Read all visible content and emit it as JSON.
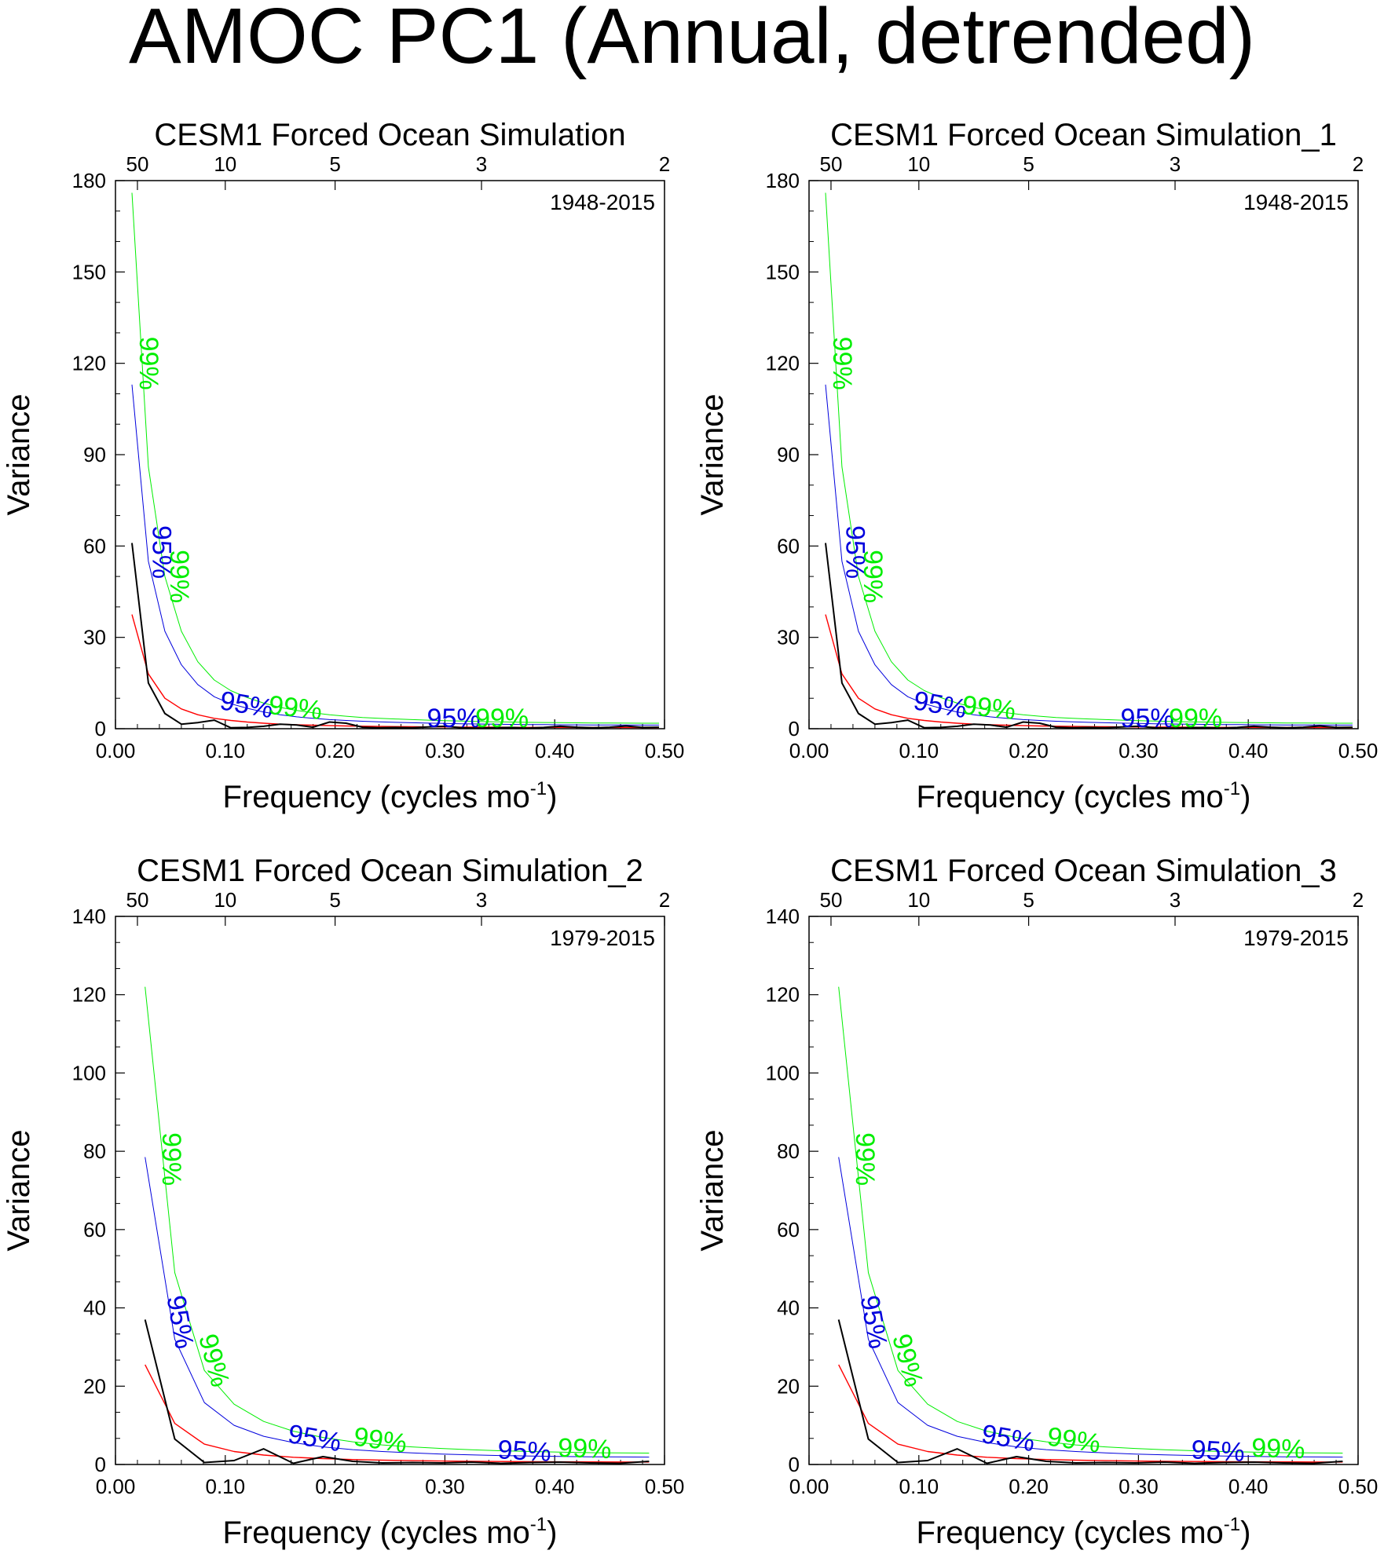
{
  "page_title": "AMOC PC1 (Annual, detrended)",
  "colors": {
    "spectrum": "#000000",
    "red_noise": "#ff0000",
    "ci95": "#0000dd",
    "ci99": "#00ee00",
    "axis": "#000000"
  },
  "chart_data": [
    {
      "type": "line",
      "title": "CESM1 Forced Ocean Simulation",
      "xlabel": "Frequency (cycles mo",
      "xlabel_superscript": "-1",
      "xlabel_close": ")",
      "ylabel": "Variance",
      "period_label": "1948-2015",
      "xlim": [
        0,
        0.5
      ],
      "ylim": [
        0,
        180
      ],
      "x_ticks": [
        "0.00",
        "0.10",
        "0.20",
        "0.30",
        "0.40",
        "0.50"
      ],
      "y_ticks": [
        "0",
        "30",
        "60",
        "90",
        "120",
        "150",
        "180"
      ],
      "top_ticks": [
        {
          "value": 50,
          "label": "50"
        },
        {
          "value": 10,
          "label": "10"
        },
        {
          "value": 5,
          "label": "5"
        },
        {
          "value": 3,
          "label": "3"
        },
        {
          "value": 2,
          "label": "2"
        }
      ],
      "x": [
        0.015,
        0.03,
        0.045,
        0.06,
        0.075,
        0.09,
        0.105,
        0.12,
        0.135,
        0.15,
        0.165,
        0.18,
        0.195,
        0.21,
        0.225,
        0.24,
        0.255,
        0.27,
        0.285,
        0.3,
        0.315,
        0.33,
        0.345,
        0.36,
        0.375,
        0.39,
        0.405,
        0.42,
        0.435,
        0.45,
        0.465,
        0.48,
        0.495
      ],
      "series": [
        {
          "name": "spectrum",
          "values": [
            61,
            15,
            5,
            1.5,
            2,
            2.8,
            0.3,
            0.4,
            0.8,
            1.5,
            1.2,
            0.5,
            2.2,
            1.8,
            0.5,
            0.3,
            0.4,
            0.3,
            0.6,
            0.8,
            0.3,
            0.2,
            0.3,
            0.4,
            0.2,
            0.4,
            0.8,
            0.5,
            0.3,
            0.5,
            0.9,
            0.4,
            0.5
          ]
        },
        {
          "name": "red_noise",
          "values": [
            37.5,
            18,
            10,
            6.5,
            4.6,
            3.4,
            2.7,
            2.2,
            1.8,
            1.5,
            1.3,
            1.15,
            1.0,
            0.9,
            0.82,
            0.75,
            0.7,
            0.65,
            0.6,
            0.57,
            0.54,
            0.51,
            0.49,
            0.47,
            0.45,
            0.44,
            0.43,
            0.42,
            0.41,
            0.4,
            0.4,
            0.39,
            0.39
          ]
        },
        {
          "name": "ci95",
          "values": [
            113,
            55,
            32,
            21,
            14.5,
            10.5,
            8.2,
            6.7,
            5.5,
            4.6,
            3.9,
            3.4,
            3.0,
            2.7,
            2.45,
            2.25,
            2.1,
            1.95,
            1.82,
            1.72,
            1.63,
            1.55,
            1.48,
            1.42,
            1.37,
            1.33,
            1.3,
            1.27,
            1.24,
            1.22,
            1.2,
            1.19,
            1.18
          ]
        },
        {
          "name": "ci99",
          "values": [
            176,
            86,
            50,
            32,
            22,
            16,
            12.5,
            10.2,
            8.4,
            7.0,
            6.0,
            5.2,
            4.6,
            4.1,
            3.7,
            3.4,
            3.2,
            3.0,
            2.8,
            2.64,
            2.5,
            2.38,
            2.27,
            2.18,
            2.1,
            2.04,
            1.98,
            1.93,
            1.89,
            1.86,
            1.83,
            1.81,
            1.8
          ]
        }
      ],
      "sig_labels": [
        {
          "text": "99%",
          "series": "ci99",
          "x": 0.022,
          "y": 120,
          "rot": 90
        },
        {
          "text": "95%",
          "series": "ci95",
          "x": 0.034,
          "y": 58,
          "rot": 90
        },
        {
          "text": "99%",
          "series": "ci99",
          "x": 0.05,
          "y": 50,
          "rot": 90
        },
        {
          "text": "95%",
          "series": "ci95",
          "x": 0.118,
          "y": 5,
          "rot": 10
        },
        {
          "text": "99%",
          "series": "ci99",
          "x": 0.163,
          "y": 4,
          "rot": 6
        },
        {
          "text": "95%",
          "series": "ci95",
          "x": 0.308,
          "y": 0.5,
          "rot": 0
        },
        {
          "text": "99%",
          "series": "ci99",
          "x": 0.352,
          "y": 0.5,
          "rot": 0
        }
      ]
    },
    {
      "type": "line",
      "title": "CESM1 Forced Ocean Simulation_1",
      "xlabel": "Frequency (cycles mo",
      "xlabel_superscript": "-1",
      "xlabel_close": ")",
      "ylabel": "Variance",
      "period_label": "1948-2015",
      "xlim": [
        0,
        0.5
      ],
      "ylim": [
        0,
        180
      ],
      "x_ticks": [
        "0.00",
        "0.10",
        "0.20",
        "0.30",
        "0.40",
        "0.50"
      ],
      "y_ticks": [
        "0",
        "30",
        "60",
        "90",
        "120",
        "150",
        "180"
      ],
      "top_ticks": [
        {
          "value": 50,
          "label": "50"
        },
        {
          "value": 10,
          "label": "10"
        },
        {
          "value": 5,
          "label": "5"
        },
        {
          "value": 3,
          "label": "3"
        },
        {
          "value": 2,
          "label": "2"
        }
      ],
      "x": [
        0.015,
        0.03,
        0.045,
        0.06,
        0.075,
        0.09,
        0.105,
        0.12,
        0.135,
        0.15,
        0.165,
        0.18,
        0.195,
        0.21,
        0.225,
        0.24,
        0.255,
        0.27,
        0.285,
        0.3,
        0.315,
        0.33,
        0.345,
        0.36,
        0.375,
        0.39,
        0.405,
        0.42,
        0.435,
        0.45,
        0.465,
        0.48,
        0.495
      ],
      "series": [
        {
          "name": "spectrum",
          "values": [
            61,
            15,
            5,
            1.5,
            2,
            2.8,
            0.3,
            0.4,
            0.8,
            1.5,
            1.2,
            0.5,
            2.2,
            1.8,
            0.5,
            0.3,
            0.4,
            0.3,
            0.6,
            0.8,
            0.3,
            0.2,
            0.3,
            0.4,
            0.2,
            0.4,
            0.8,
            0.5,
            0.3,
            0.5,
            0.9,
            0.4,
            0.5
          ]
        },
        {
          "name": "red_noise",
          "values": [
            37.5,
            18,
            10,
            6.5,
            4.6,
            3.4,
            2.7,
            2.2,
            1.8,
            1.5,
            1.3,
            1.15,
            1.0,
            0.9,
            0.82,
            0.75,
            0.7,
            0.65,
            0.6,
            0.57,
            0.54,
            0.51,
            0.49,
            0.47,
            0.45,
            0.44,
            0.43,
            0.42,
            0.41,
            0.4,
            0.4,
            0.39,
            0.39
          ]
        },
        {
          "name": "ci95",
          "values": [
            113,
            55,
            32,
            21,
            14.5,
            10.5,
            8.2,
            6.7,
            5.5,
            4.6,
            3.9,
            3.4,
            3.0,
            2.7,
            2.45,
            2.25,
            2.1,
            1.95,
            1.82,
            1.72,
            1.63,
            1.55,
            1.48,
            1.42,
            1.37,
            1.33,
            1.3,
            1.27,
            1.24,
            1.22,
            1.2,
            1.19,
            1.18
          ]
        },
        {
          "name": "ci99",
          "values": [
            176,
            86,
            50,
            32,
            22,
            16,
            12.5,
            10.2,
            8.4,
            7.0,
            6.0,
            5.2,
            4.6,
            4.1,
            3.7,
            3.4,
            3.2,
            3.0,
            2.8,
            2.64,
            2.5,
            2.38,
            2.27,
            2.18,
            2.1,
            2.04,
            1.98,
            1.93,
            1.89,
            1.86,
            1.83,
            1.81,
            1.8
          ]
        }
      ],
      "sig_labels": [
        {
          "text": "99%",
          "series": "ci99",
          "x": 0.022,
          "y": 120,
          "rot": 90
        },
        {
          "text": "95%",
          "series": "ci95",
          "x": 0.034,
          "y": 58,
          "rot": 90
        },
        {
          "text": "99%",
          "series": "ci99",
          "x": 0.05,
          "y": 50,
          "rot": 90
        },
        {
          "text": "95%",
          "series": "ci95",
          "x": 0.118,
          "y": 5,
          "rot": 10
        },
        {
          "text": "99%",
          "series": "ci99",
          "x": 0.163,
          "y": 4,
          "rot": 6
        },
        {
          "text": "95%",
          "series": "ci95",
          "x": 0.308,
          "y": 0.5,
          "rot": 0
        },
        {
          "text": "99%",
          "series": "ci99",
          "x": 0.352,
          "y": 0.5,
          "rot": 0
        }
      ]
    },
    {
      "type": "line",
      "title": "CESM1 Forced Ocean Simulation_2",
      "xlabel": "Frequency (cycles mo",
      "xlabel_superscript": "-1",
      "xlabel_close": ")",
      "ylabel": "Variance",
      "period_label": "1979-2015",
      "xlim": [
        0,
        0.5
      ],
      "ylim": [
        0,
        140
      ],
      "x_ticks": [
        "0.00",
        "0.10",
        "0.20",
        "0.30",
        "0.40",
        "0.50"
      ],
      "y_ticks": [
        "0",
        "20",
        "40",
        "60",
        "80",
        "100",
        "120",
        "140"
      ],
      "top_ticks": [
        {
          "value": 50,
          "label": "50"
        },
        {
          "value": 10,
          "label": "10"
        },
        {
          "value": 5,
          "label": "5"
        },
        {
          "value": 3,
          "label": "3"
        },
        {
          "value": 2,
          "label": "2"
        }
      ],
      "x": [
        0.027,
        0.054,
        0.081,
        0.108,
        0.135,
        0.162,
        0.189,
        0.216,
        0.243,
        0.27,
        0.297,
        0.324,
        0.351,
        0.378,
        0.405,
        0.432,
        0.459,
        0.486
      ],
      "series": [
        {
          "name": "spectrum",
          "values": [
            37,
            6.5,
            0.5,
            1,
            4,
            0.3,
            2,
            0.8,
            0.4,
            0.5,
            0.4,
            0.6,
            0.3,
            0.5,
            0.6,
            0.4,
            0.3,
            0.8
          ]
        },
        {
          "name": "red_noise",
          "values": [
            25.5,
            10.5,
            5.2,
            3.3,
            2.4,
            1.85,
            1.5,
            1.27,
            1.1,
            0.98,
            0.89,
            0.82,
            0.76,
            0.72,
            0.68,
            0.66,
            0.64,
            0.63
          ]
        },
        {
          "name": "ci95",
          "values": [
            78.5,
            32,
            15.8,
            10,
            7.2,
            5.6,
            4.5,
            3.8,
            3.3,
            2.95,
            2.67,
            2.45,
            2.28,
            2.15,
            2.05,
            1.97,
            1.92,
            1.89
          ]
        },
        {
          "name": "ci99",
          "values": [
            122,
            49,
            24,
            15.4,
            11,
            8.5,
            6.9,
            5.8,
            5.0,
            4.5,
            4.1,
            3.75,
            3.5,
            3.3,
            3.15,
            3.0,
            2.95,
            2.9
          ]
        }
      ],
      "sig_labels": [
        {
          "text": "99%",
          "series": "ci99",
          "x": 0.043,
          "y": 78,
          "rot": 90
        },
        {
          "text": "95%",
          "series": "ci95",
          "x": 0.051,
          "y": 36,
          "rot": 80
        },
        {
          "text": "99%",
          "series": "ci99",
          "x": 0.082,
          "y": 26,
          "rot": 75
        },
        {
          "text": "95%",
          "series": "ci95",
          "x": 0.18,
          "y": 4.5,
          "rot": 10
        },
        {
          "text": "99%",
          "series": "ci99",
          "x": 0.24,
          "y": 4,
          "rot": 8
        },
        {
          "text": "95%",
          "series": "ci95",
          "x": 0.372,
          "y": 1.2,
          "rot": 3
        },
        {
          "text": "99%",
          "series": "ci99",
          "x": 0.427,
          "y": 1.8,
          "rot": 2
        }
      ]
    },
    {
      "type": "line",
      "title": "CESM1 Forced Ocean Simulation_3",
      "xlabel": "Frequency (cycles mo",
      "xlabel_superscript": "-1",
      "xlabel_close": ")",
      "ylabel": "Variance",
      "period_label": "1979-2015",
      "xlim": [
        0,
        0.5
      ],
      "ylim": [
        0,
        140
      ],
      "x_ticks": [
        "0.00",
        "0.10",
        "0.20",
        "0.30",
        "0.40",
        "0.50"
      ],
      "y_ticks": [
        "0",
        "20",
        "40",
        "60",
        "80",
        "100",
        "120",
        "140"
      ],
      "top_ticks": [
        {
          "value": 50,
          "label": "50"
        },
        {
          "value": 10,
          "label": "10"
        },
        {
          "value": 5,
          "label": "5"
        },
        {
          "value": 3,
          "label": "3"
        },
        {
          "value": 2,
          "label": "2"
        }
      ],
      "x": [
        0.027,
        0.054,
        0.081,
        0.108,
        0.135,
        0.162,
        0.189,
        0.216,
        0.243,
        0.27,
        0.297,
        0.324,
        0.351,
        0.378,
        0.405,
        0.432,
        0.459,
        0.486
      ],
      "series": [
        {
          "name": "spectrum",
          "values": [
            37,
            6.5,
            0.5,
            1,
            4,
            0.3,
            2,
            0.8,
            0.4,
            0.5,
            0.4,
            0.6,
            0.3,
            0.5,
            0.6,
            0.4,
            0.3,
            0.8
          ]
        },
        {
          "name": "red_noise",
          "values": [
            25.5,
            10.5,
            5.2,
            3.3,
            2.4,
            1.85,
            1.5,
            1.27,
            1.1,
            0.98,
            0.89,
            0.82,
            0.76,
            0.72,
            0.68,
            0.66,
            0.64,
            0.63
          ]
        },
        {
          "name": "ci95",
          "values": [
            78.5,
            32,
            15.8,
            10,
            7.2,
            5.6,
            4.5,
            3.8,
            3.3,
            2.95,
            2.67,
            2.45,
            2.28,
            2.15,
            2.05,
            1.97,
            1.92,
            1.89
          ]
        },
        {
          "name": "ci99",
          "values": [
            122,
            49,
            24,
            15.4,
            11,
            8.5,
            6.9,
            5.8,
            5.0,
            4.5,
            4.1,
            3.75,
            3.5,
            3.3,
            3.15,
            3.0,
            2.95,
            2.9
          ]
        }
      ],
      "sig_labels": [
        {
          "text": "99%",
          "series": "ci99",
          "x": 0.043,
          "y": 78,
          "rot": 90
        },
        {
          "text": "95%",
          "series": "ci95",
          "x": 0.051,
          "y": 36,
          "rot": 80
        },
        {
          "text": "99%",
          "series": "ci99",
          "x": 0.082,
          "y": 26,
          "rot": 75
        },
        {
          "text": "95%",
          "series": "ci95",
          "x": 0.18,
          "y": 4.5,
          "rot": 10
        },
        {
          "text": "99%",
          "series": "ci99",
          "x": 0.24,
          "y": 4,
          "rot": 8
        },
        {
          "text": "95%",
          "series": "ci95",
          "x": 0.372,
          "y": 1.2,
          "rot": 3
        },
        {
          "text": "99%",
          "series": "ci99",
          "x": 0.427,
          "y": 1.8,
          "rot": 2
        }
      ]
    }
  ]
}
